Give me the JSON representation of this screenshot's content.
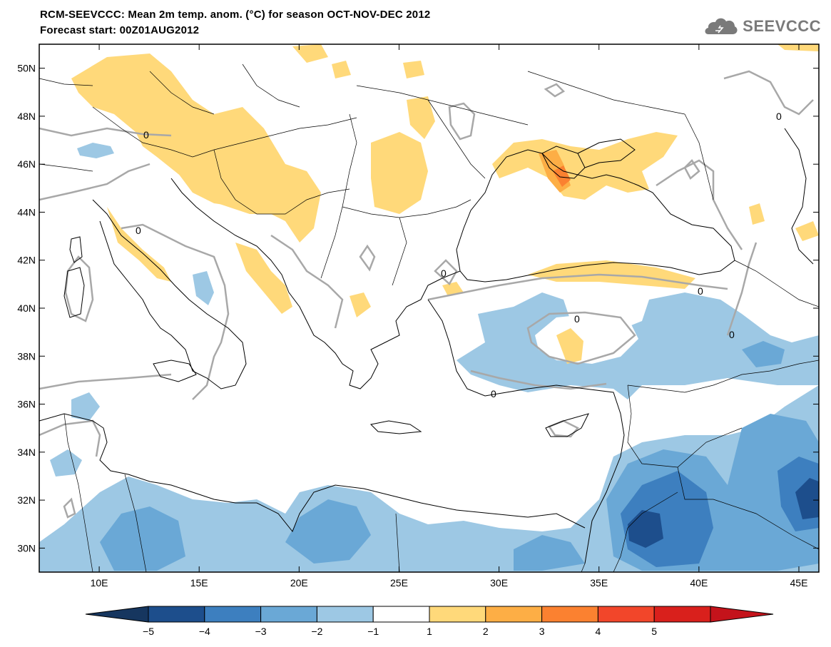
{
  "header": {
    "title_line1": "RCM-SEEVCCC: Mean 2m temp. anom. (°C) for season OCT-NOV-DEC 2012",
    "title_line2": "Forecast start: 00Z01AUG2012",
    "logo_text": "SEEVCCC",
    "logo_icon": "cloud-icon"
  },
  "map": {
    "lon_range": [
      7,
      46
    ],
    "lat_range": [
      29,
      51
    ],
    "lat_ticks": [
      "50N",
      "48N",
      "46N",
      "44N",
      "42N",
      "40N",
      "38N",
      "36N",
      "34N",
      "32N",
      "30N"
    ],
    "lat_tick_values": [
      50,
      48,
      46,
      44,
      42,
      40,
      38,
      36,
      34,
      32,
      30
    ],
    "lon_ticks": [
      "10E",
      "15E",
      "20E",
      "25E",
      "30E",
      "35E",
      "40E",
      "45E"
    ],
    "lon_tick_values": [
      10,
      15,
      20,
      25,
      30,
      35,
      40,
      45
    ],
    "contour_label": "0"
  },
  "colorbar": {
    "labels": [
      "−5",
      "−4",
      "−3",
      "−2",
      "−1",
      "1",
      "2",
      "3",
      "4",
      "5"
    ],
    "colors": [
      "#1d4e8c",
      "#3d7fbf",
      "#6aa8d6",
      "#9dc8e4",
      "#ffffff",
      "#ffd97a",
      "#fdae45",
      "#fb8130",
      "#f2462a",
      "#d9201c"
    ],
    "colors_extend_low": "#16365f",
    "colors_extend_high": "#c4131b"
  }
}
